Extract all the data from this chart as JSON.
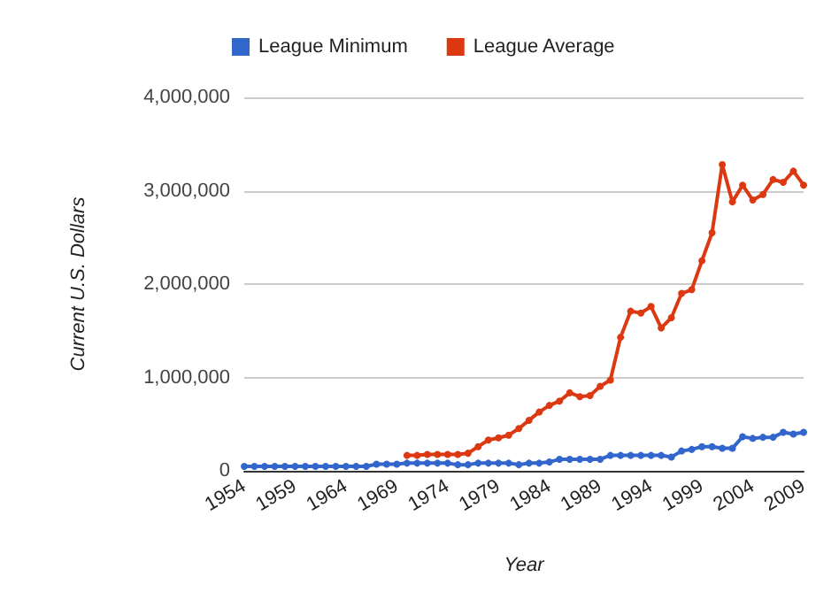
{
  "chart_data": {
    "type": "line",
    "xlabel": "Year",
    "ylabel": "Current U.S. Dollars",
    "x": [
      1954,
      1955,
      1956,
      1957,
      1958,
      1959,
      1960,
      1961,
      1962,
      1963,
      1964,
      1965,
      1966,
      1967,
      1968,
      1969,
      1970,
      1971,
      1972,
      1973,
      1974,
      1975,
      1976,
      1977,
      1978,
      1979,
      1980,
      1981,
      1982,
      1983,
      1984,
      1985,
      1986,
      1987,
      1988,
      1989,
      1990,
      1991,
      1992,
      1993,
      1994,
      1995,
      1996,
      1997,
      1998,
      1999,
      2000,
      2001,
      2002,
      2003,
      2004,
      2005,
      2006,
      2007,
      2008,
      2009
    ],
    "series": [
      {
        "name": "League Minimum",
        "color": "#3366cc",
        "values": [
          47000,
          47000,
          47000,
          47000,
          47000,
          47000,
          47000,
          47000,
          47000,
          47000,
          47000,
          47000,
          47000,
          71000,
          71000,
          71000,
          82000,
          82000,
          82000,
          82000,
          82000,
          65000,
          65000,
          82000,
          82000,
          82000,
          82000,
          65000,
          82000,
          82000,
          94000,
          124000,
          124000,
          124000,
          124000,
          124000,
          165000,
          165000,
          165000,
          165000,
          165000,
          165000,
          147000,
          212000,
          229000,
          259000,
          259000,
          241000,
          241000,
          365000,
          347000,
          359000,
          359000,
          412000,
          394000,
          412000
        ]
      },
      {
        "name": "League Average",
        "color": "#dc3912",
        "values": [
          null,
          null,
          null,
          null,
          null,
          null,
          null,
          null,
          null,
          null,
          null,
          null,
          null,
          null,
          null,
          null,
          165000,
          165000,
          176000,
          176000,
          176000,
          176000,
          188000,
          259000,
          329000,
          353000,
          382000,
          453000,
          541000,
          629000,
          700000,
          747000,
          835000,
          794000,
          806000,
          906000,
          971000,
          1430000,
          1710000,
          1690000,
          1760000,
          1530000,
          1640000,
          1900000,
          1940000,
          2250000,
          2550000,
          3280000,
          2880000,
          3060000,
          2900000,
          2960000,
          3120000,
          3090000,
          3210000,
          3060000
        ]
      }
    ],
    "xlim": [
      1954,
      2009
    ],
    "xticks": [
      1954,
      1959,
      1964,
      1969,
      1974,
      1979,
      1984,
      1989,
      1994,
      1999,
      2004,
      2009
    ],
    "ylim": [
      0,
      4000000
    ],
    "yticks": [
      0,
      {
        "value": 1000000,
        "label": "1,000,000"
      },
      {
        "value": 2000000,
        "label": "2,000,000"
      },
      {
        "value": 3000000,
        "label": "3,000,000"
      },
      {
        "value": 4000000,
        "label": "4,000,000"
      }
    ],
    "grid": "y",
    "legend": "top left",
    "marker": "circle",
    "line_style": "solid"
  }
}
